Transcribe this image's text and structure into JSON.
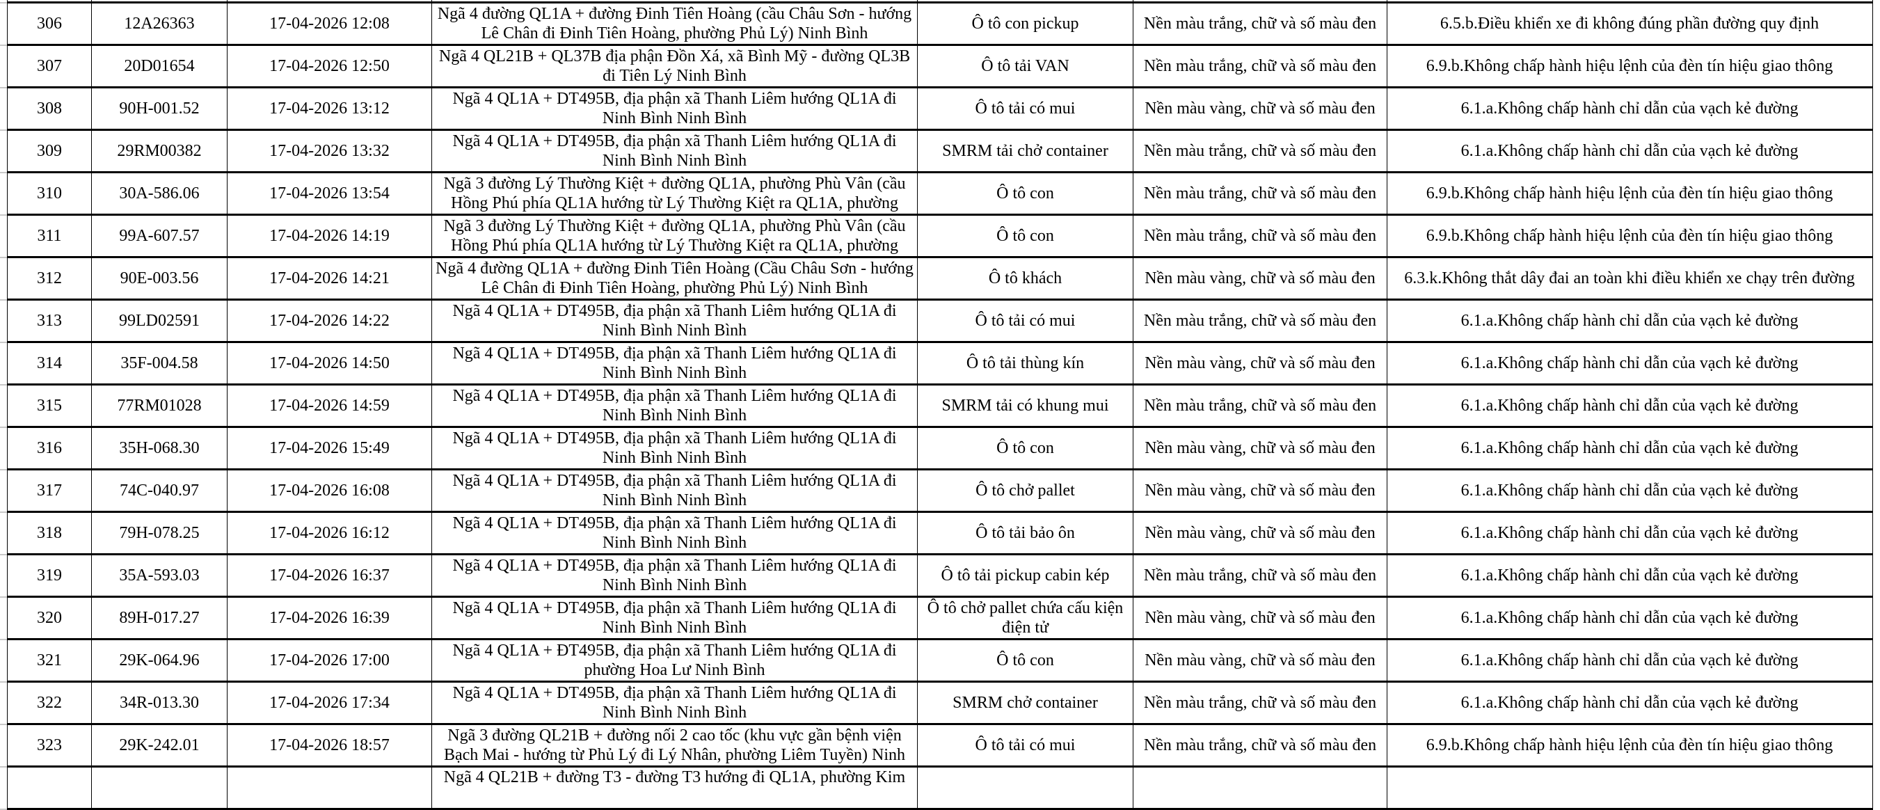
{
  "rows": [
    {
      "stt": "",
      "plate": "",
      "time": "",
      "location": "",
      "vehicle": "",
      "plate_color": "",
      "violation": ""
    },
    {
      "stt": "306",
      "plate": "12A26363",
      "time": "17-04-2026 12:08",
      "location": "Ngã 4 đường QL1A + đường Đinh Tiên Hoàng (cầu Châu Sơn - hướng Lê Chân đi Đinh Tiên Hoàng, phường Phủ Lý) Ninh Bình",
      "vehicle": "Ô tô con pickup",
      "plate_color": "Nền màu trắng, chữ và số màu đen",
      "violation": "6.5.b.Điều khiển xe đi không đúng phần đường quy định"
    },
    {
      "stt": "307",
      "plate": "20D01654",
      "time": "17-04-2026 12:50",
      "location": "Ngã 4 QL21B + QL37B địa phận Đồn Xá, xã Bình Mỹ - đường QL3B đi Tiên Lý Ninh Bình",
      "vehicle": "Ô tô tải VAN",
      "plate_color": "Nền màu trắng, chữ và số màu đen",
      "violation": "6.9.b.Không chấp hành hiệu lệnh của đèn tín hiệu giao thông"
    },
    {
      "stt": "308",
      "plate": "90H-001.52",
      "time": "17-04-2026 13:12",
      "location": "Ngã 4 QL1A + DT495B, địa phận xã Thanh Liêm hướng QL1A đi Ninh Bình Ninh Bình",
      "vehicle": "Ô tô tải có mui",
      "plate_color": "Nền màu vàng, chữ và số màu đen",
      "violation": "6.1.a.Không chấp hành chỉ dẫn của vạch kẻ đường"
    },
    {
      "stt": "309",
      "plate": "29RM00382",
      "time": "17-04-2026 13:32",
      "location": "Ngã 4 QL1A + DT495B, địa phận xã Thanh Liêm hướng QL1A đi Ninh Bình Ninh Bình",
      "vehicle": "SMRM tải chở container",
      "plate_color": "Nền màu trắng, chữ và số màu đen",
      "violation": "6.1.a.Không chấp hành chỉ dẫn của vạch kẻ đường"
    },
    {
      "stt": "310",
      "plate": "30A-586.06",
      "time": "17-04-2026 13:54",
      "location": "Ngã 3 đường Lý Thường Kiệt + đường QL1A, phường Phù Vân (cầu Hồng Phú phía QL1A hướng từ Lý Thường Kiệt ra QL1A, phường",
      "vehicle": "Ô tô con",
      "plate_color": "Nền màu trắng, chữ và số màu đen",
      "violation": "6.9.b.Không chấp hành hiệu lệnh của đèn tín hiệu giao thông"
    },
    {
      "stt": "311",
      "plate": "99A-607.57",
      "time": "17-04-2026 14:19",
      "location": "Ngã 3 đường Lý Thường Kiệt + đường QL1A, phường Phù Vân (cầu Hồng Phú phía QL1A hướng từ Lý Thường Kiệt ra QL1A, phường",
      "vehicle": "Ô tô con",
      "plate_color": "Nền màu trắng, chữ và số màu đen",
      "violation": "6.9.b.Không chấp hành hiệu lệnh của đèn tín hiệu giao thông"
    },
    {
      "stt": "312",
      "plate": "90E-003.56",
      "time": "17-04-2026 14:21",
      "location": "Ngã 4 đường QL1A + đường Đinh Tiên Hoàng (Cầu Châu Sơn - hướng Lê Chân đi Đinh Tiên Hoàng, phường Phủ Lý) Ninh Bình",
      "vehicle": "Ô tô khách",
      "plate_color": "Nền màu vàng, chữ và số màu đen",
      "violation": "6.3.k.Không thắt dây đai an toàn khi điều khiển xe chạy trên đường"
    },
    {
      "stt": "313",
      "plate": "99LD02591",
      "time": "17-04-2026 14:22",
      "location": "Ngã 4 QL1A + DT495B, địa phận xã Thanh Liêm hướng QL1A đi Ninh Bình Ninh Bình",
      "vehicle": "Ô tô tải có mui",
      "plate_color": "Nền màu trắng, chữ và số màu đen",
      "violation": "6.1.a.Không chấp hành chỉ dẫn của vạch kẻ đường"
    },
    {
      "stt": "314",
      "plate": "35F-004.58",
      "time": "17-04-2026 14:50",
      "location": "Ngã 4 QL1A + DT495B, địa phận xã Thanh Liêm hướng QL1A đi Ninh Bình Ninh Bình",
      "vehicle": "Ô tô tải thùng kín",
      "plate_color": "Nền màu vàng, chữ và số màu đen",
      "violation": "6.1.a.Không chấp hành chỉ dẫn của vạch kẻ đường"
    },
    {
      "stt": "315",
      "plate": "77RM01028",
      "time": "17-04-2026 14:59",
      "location": "Ngã 4 QL1A + DT495B, địa phận xã Thanh Liêm hướng QL1A đi Ninh Bình Ninh Bình",
      "vehicle": "SMRM tải có khung mui",
      "plate_color": "Nền màu trắng, chữ và số màu đen",
      "violation": "6.1.a.Không chấp hành chỉ dẫn của vạch kẻ đường"
    },
    {
      "stt": "316",
      "plate": "35H-068.30",
      "time": "17-04-2026 15:49",
      "location": "Ngã 4 QL1A + DT495B, địa phận xã Thanh Liêm hướng QL1A đi Ninh Bình Ninh Bình",
      "vehicle": "Ô tô con",
      "plate_color": "Nền màu vàng, chữ và số màu đen",
      "violation": "6.1.a.Không chấp hành chỉ dẫn của vạch kẻ đường"
    },
    {
      "stt": "317",
      "plate": "74C-040.97",
      "time": "17-04-2026 16:08",
      "location": "Ngã 4 QL1A + DT495B, địa phận xã Thanh Liêm hướng QL1A đi Ninh Bình Ninh Bình",
      "vehicle": "Ô tô chở pallet",
      "plate_color": "Nền màu vàng, chữ và số màu đen",
      "violation": "6.1.a.Không chấp hành chỉ dẫn của vạch kẻ đường"
    },
    {
      "stt": "318",
      "plate": "79H-078.25",
      "time": "17-04-2026 16:12",
      "location": "Ngã 4 QL1A + DT495B, địa phận xã Thanh Liêm hướng QL1A đi Ninh Bình Ninh Bình",
      "vehicle": "Ô tô tải bảo ôn",
      "plate_color": "Nền màu vàng, chữ và số màu đen",
      "violation": "6.1.a.Không chấp hành chỉ dẫn của vạch kẻ đường"
    },
    {
      "stt": "319",
      "plate": "35A-593.03",
      "time": "17-04-2026 16:37",
      "location": "Ngã 4 QL1A + DT495B, địa phận xã Thanh Liêm hướng QL1A đi Ninh Bình Ninh Bình",
      "vehicle": "Ô tô tải pickup cabin kép",
      "plate_color": "Nền màu trắng, chữ và số màu đen",
      "violation": "6.1.a.Không chấp hành chỉ dẫn của vạch kẻ đường"
    },
    {
      "stt": "320",
      "plate": "89H-017.27",
      "time": "17-04-2026 16:39",
      "location": "Ngã 4 QL1A + DT495B, địa phận xã Thanh Liêm hướng QL1A đi Ninh Bình Ninh Bình",
      "vehicle": "Ô tô chở pallet chứa cấu kiện điện tử",
      "plate_color": "Nền màu vàng, chữ và số màu đen",
      "violation": "6.1.a.Không chấp hành chỉ dẫn của vạch kẻ đường"
    },
    {
      "stt": "321",
      "plate": "29K-064.96",
      "time": "17-04-2026 17:00",
      "location": "Ngã 4 QL1A + ĐT495B, địa phận xã Thanh Liêm hướng QL1A đi phường Hoa Lư Ninh Bình",
      "vehicle": "Ô tô con",
      "plate_color": "Nền màu vàng, chữ và số màu đen",
      "violation": "6.1.a.Không chấp hành chỉ dẫn của vạch kẻ đường"
    },
    {
      "stt": "322",
      "plate": "34R-013.30",
      "time": "17-04-2026 17:34",
      "location": "Ngã 4 QL1A + DT495B, địa phận xã Thanh Liêm hướng QL1A đi Ninh Bình Ninh Bình",
      "vehicle": "SMRM chở container",
      "plate_color": "Nền màu trắng, chữ và số màu đen",
      "violation": "6.1.a.Không chấp hành chỉ dẫn của vạch kẻ đường"
    },
    {
      "stt": "323",
      "plate": "29K-242.01",
      "time": "17-04-2026 18:57",
      "location": "Ngã 3 đường QL21B + đường nối 2 cao tốc (khu vực gần bệnh viện Bạch Mai - hướng từ Phủ Lý đi Lý Nhân, phường Liêm Tuyền) Ninh",
      "vehicle": "Ô tô tải có mui",
      "plate_color": "Nền màu trắng, chữ và số màu đen",
      "violation": "6.9.b.Không chấp hành hiệu lệnh của đèn tín hiệu giao thông"
    },
    {
      "stt": "",
      "plate": "",
      "time": "",
      "location": "Ngã 4 QL21B + đường T3 - đường T3 hướng đi QL1A, phường Kim",
      "vehicle": "",
      "plate_color": "",
      "violation": ""
    }
  ]
}
